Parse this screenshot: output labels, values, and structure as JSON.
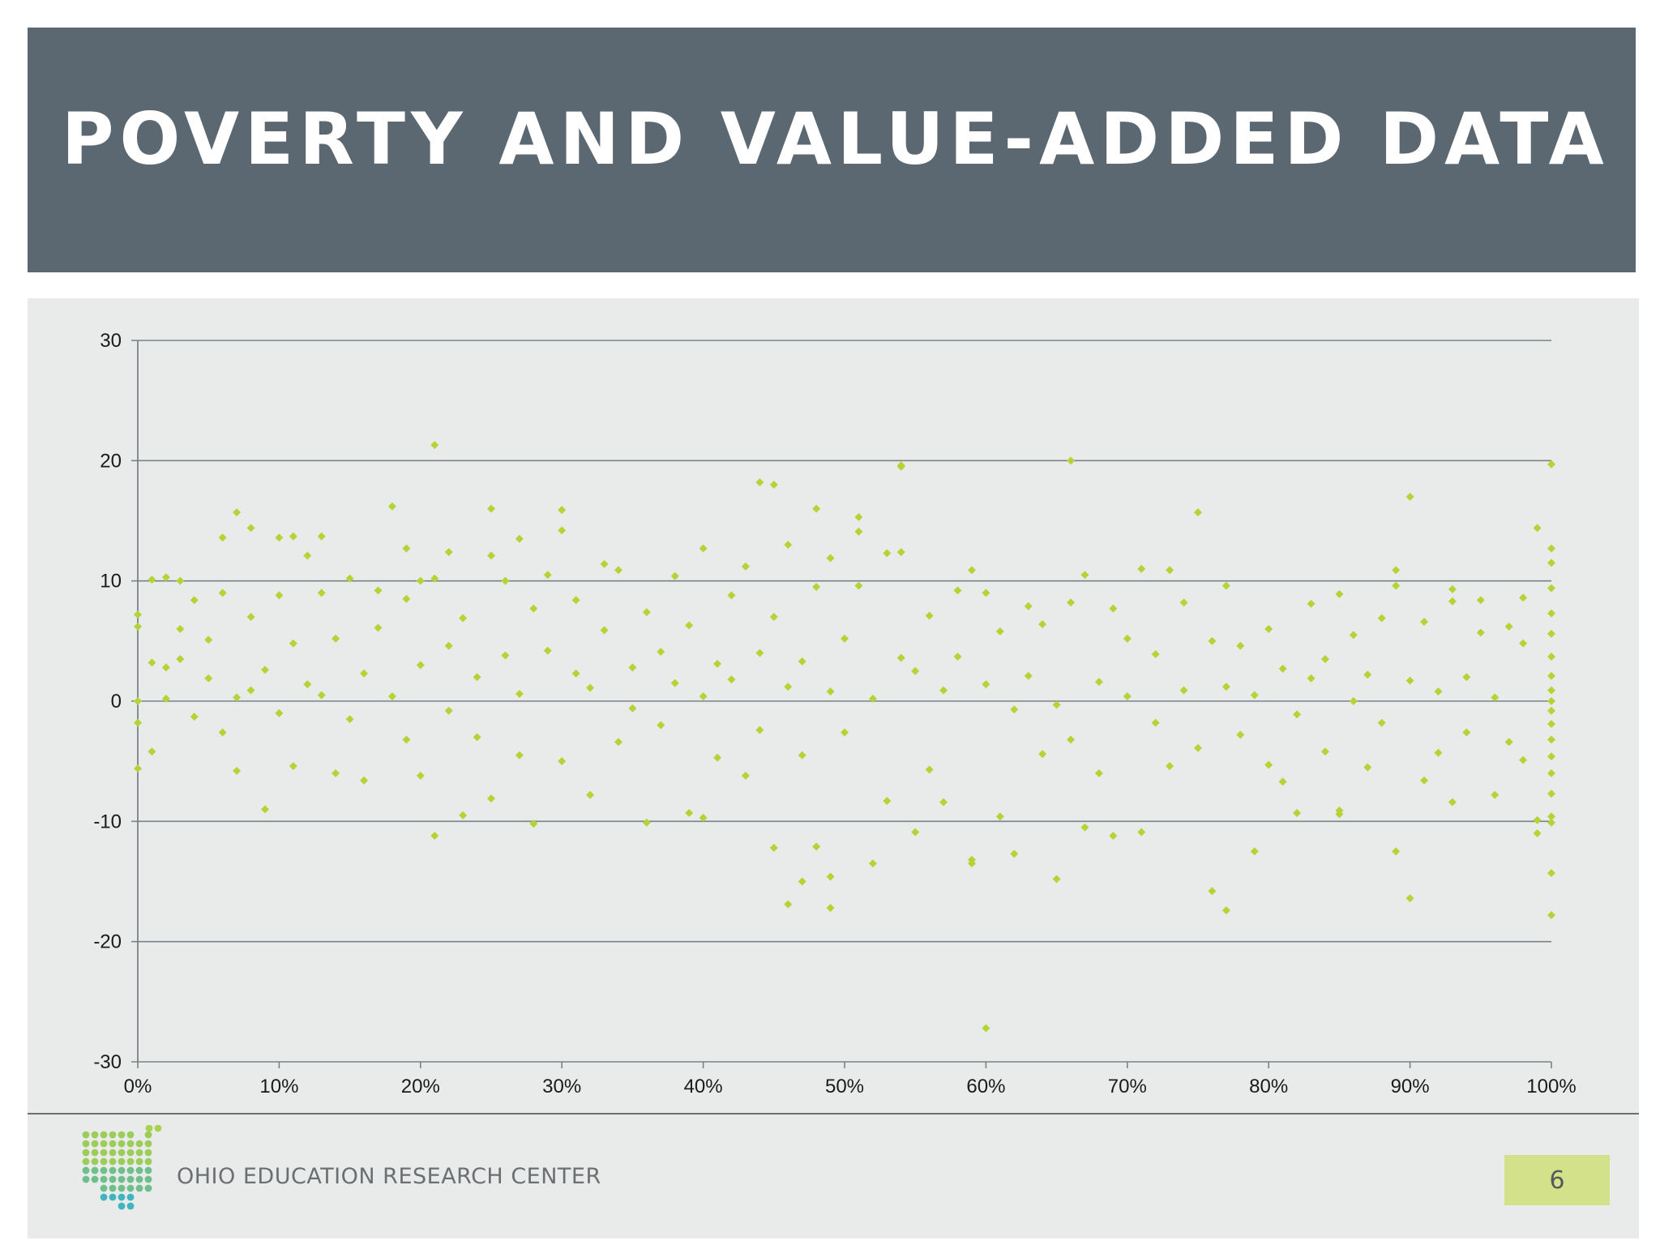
{
  "slide": {
    "title": "POVERTY AND VALUE-ADDED DATA",
    "org_name": "OHIO EDUCATION RESEARCH CENTER",
    "page_number": "6",
    "colors": {
      "banner": "#5b6771",
      "panel": "#e9ebeb",
      "marker": "#b5d334",
      "page_badge": "#d3e28a"
    },
    "logo_icon": "ohio-dot-map-icon"
  },
  "chart_data": {
    "type": "scatter",
    "title": "",
    "xlabel": "",
    "ylabel": "",
    "xlim": [
      0,
      1
    ],
    "ylim": [
      -30,
      30
    ],
    "x_ticks": [
      0,
      0.1,
      0.2,
      0.3,
      0.4,
      0.5,
      0.6,
      0.7,
      0.8,
      0.9,
      1.0
    ],
    "x_tick_labels": [
      "0%",
      "10%",
      "20%",
      "30%",
      "40%",
      "50%",
      "60%",
      "70%",
      "80%",
      "90%",
      "100%"
    ],
    "y_ticks": [
      30,
      20,
      10,
      0,
      -10,
      -20,
      -30
    ],
    "y_tick_labels": [
      "30",
      "20",
      "10",
      "0",
      "-10",
      "-20",
      "-30"
    ],
    "gridlines": "horizontal",
    "legend": "none",
    "marker": "diamond",
    "series": [
      {
        "points": [
          [
            0.0,
            7.2
          ],
          [
            0.0,
            6.2
          ],
          [
            0.0,
            -5.6
          ],
          [
            0.0,
            -1.8
          ],
          [
            0.0,
            0.0
          ],
          [
            0.01,
            3.2
          ],
          [
            0.01,
            -4.2
          ],
          [
            0.01,
            10.1
          ],
          [
            0.02,
            10.3
          ],
          [
            0.02,
            2.8
          ],
          [
            0.02,
            0.2
          ],
          [
            0.03,
            6.0
          ],
          [
            0.03,
            3.5
          ],
          [
            0.03,
            10.0
          ],
          [
            0.04,
            8.4
          ],
          [
            0.04,
            -1.3
          ],
          [
            0.05,
            5.1
          ],
          [
            0.05,
            1.9
          ],
          [
            0.06,
            13.6
          ],
          [
            0.06,
            9.0
          ],
          [
            0.06,
            -2.6
          ],
          [
            0.07,
            0.3
          ],
          [
            0.07,
            -5.8
          ],
          [
            0.07,
            15.7
          ],
          [
            0.08,
            14.4
          ],
          [
            0.08,
            7.0
          ],
          [
            0.08,
            0.9
          ],
          [
            0.09,
            -9.0
          ],
          [
            0.09,
            2.6
          ],
          [
            0.1,
            13.6
          ],
          [
            0.1,
            8.8
          ],
          [
            0.1,
            -1.0
          ],
          [
            0.11,
            -5.4
          ],
          [
            0.11,
            4.8
          ],
          [
            0.11,
            13.7
          ],
          [
            0.12,
            1.4
          ],
          [
            0.12,
            12.1
          ],
          [
            0.13,
            13.7
          ],
          [
            0.13,
            9.0
          ],
          [
            0.13,
            0.5
          ],
          [
            0.14,
            -6.0
          ],
          [
            0.14,
            5.2
          ],
          [
            0.15,
            10.2
          ],
          [
            0.15,
            -1.5
          ],
          [
            0.16,
            -6.6
          ],
          [
            0.16,
            2.3
          ],
          [
            0.17,
            9.2
          ],
          [
            0.17,
            6.1
          ],
          [
            0.18,
            16.2
          ],
          [
            0.18,
            0.4
          ],
          [
            0.19,
            12.7
          ],
          [
            0.19,
            -3.2
          ],
          [
            0.19,
            8.5
          ],
          [
            0.2,
            10.0
          ],
          [
            0.2,
            -6.2
          ],
          [
            0.2,
            3.0
          ],
          [
            0.21,
            -11.2
          ],
          [
            0.21,
            21.3
          ],
          [
            0.21,
            10.2
          ],
          [
            0.22,
            12.4
          ],
          [
            0.22,
            -0.8
          ],
          [
            0.22,
            4.6
          ],
          [
            0.23,
            -9.5
          ],
          [
            0.23,
            6.9
          ],
          [
            0.24,
            -3.0
          ],
          [
            0.24,
            2.0
          ],
          [
            0.25,
            16.0
          ],
          [
            0.25,
            12.1
          ],
          [
            0.25,
            -8.1
          ],
          [
            0.26,
            10.0
          ],
          [
            0.26,
            3.8
          ],
          [
            0.27,
            13.5
          ],
          [
            0.27,
            -4.5
          ],
          [
            0.27,
            0.6
          ],
          [
            0.28,
            7.7
          ],
          [
            0.28,
            -10.2
          ],
          [
            0.29,
            10.5
          ],
          [
            0.29,
            4.2
          ],
          [
            0.3,
            14.2
          ],
          [
            0.3,
            15.9
          ],
          [
            0.3,
            -5.0
          ],
          [
            0.31,
            2.3
          ],
          [
            0.31,
            8.4
          ],
          [
            0.32,
            -7.8
          ],
          [
            0.32,
            1.1
          ],
          [
            0.33,
            11.4
          ],
          [
            0.33,
            5.9
          ],
          [
            0.34,
            -3.4
          ],
          [
            0.34,
            10.9
          ],
          [
            0.35,
            2.8
          ],
          [
            0.35,
            -0.6
          ],
          [
            0.36,
            7.4
          ],
          [
            0.36,
            -10.1
          ],
          [
            0.37,
            4.1
          ],
          [
            0.37,
            -2.0
          ],
          [
            0.38,
            10.4
          ],
          [
            0.38,
            1.5
          ],
          [
            0.39,
            -9.3
          ],
          [
            0.39,
            6.3
          ],
          [
            0.4,
            -9.7
          ],
          [
            0.4,
            12.7
          ],
          [
            0.4,
            0.4
          ],
          [
            0.41,
            3.1
          ],
          [
            0.41,
            -4.7
          ],
          [
            0.42,
            8.8
          ],
          [
            0.42,
            1.8
          ],
          [
            0.43,
            11.2
          ],
          [
            0.43,
            -6.2
          ],
          [
            0.44,
            18.2
          ],
          [
            0.44,
            4.0
          ],
          [
            0.44,
            -2.4
          ],
          [
            0.45,
            7.0
          ],
          [
            0.45,
            18.0
          ],
          [
            0.45,
            -12.2
          ],
          [
            0.46,
            1.2
          ],
          [
            0.46,
            -16.9
          ],
          [
            0.46,
            13.0
          ],
          [
            0.47,
            -15.0
          ],
          [
            0.47,
            3.3
          ],
          [
            0.47,
            -4.5
          ],
          [
            0.48,
            16.0
          ],
          [
            0.48,
            9.5
          ],
          [
            0.48,
            -12.1
          ],
          [
            0.49,
            0.8
          ],
          [
            0.49,
            -14.6
          ],
          [
            0.49,
            -17.2
          ],
          [
            0.49,
            11.9
          ],
          [
            0.5,
            5.2
          ],
          [
            0.5,
            -2.6
          ],
          [
            0.51,
            15.3
          ],
          [
            0.51,
            14.1
          ],
          [
            0.51,
            9.6
          ],
          [
            0.52,
            -13.5
          ],
          [
            0.52,
            0.2
          ],
          [
            0.53,
            12.3
          ],
          [
            0.53,
            -8.3
          ],
          [
            0.54,
            3.6
          ],
          [
            0.54,
            19.6
          ],
          [
            0.54,
            19.5
          ],
          [
            0.54,
            12.4
          ],
          [
            0.55,
            -10.9
          ],
          [
            0.55,
            2.5
          ],
          [
            0.56,
            -5.7
          ],
          [
            0.56,
            7.1
          ],
          [
            0.57,
            0.9
          ],
          [
            0.57,
            -8.4
          ],
          [
            0.58,
            9.2
          ],
          [
            0.58,
            3.7
          ],
          [
            0.59,
            10.9
          ],
          [
            0.59,
            -13.5
          ],
          [
            0.59,
            -13.2
          ],
          [
            0.6,
            1.4
          ],
          [
            0.6,
            9.0
          ],
          [
            0.6,
            -27.2
          ],
          [
            0.61,
            -9.6
          ],
          [
            0.61,
            5.8
          ],
          [
            0.62,
            -0.7
          ],
          [
            0.62,
            -12.7
          ],
          [
            0.63,
            7.9
          ],
          [
            0.63,
            2.1
          ],
          [
            0.64,
            -4.4
          ],
          [
            0.64,
            6.4
          ],
          [
            0.65,
            -0.3
          ],
          [
            0.65,
            -14.8
          ],
          [
            0.66,
            20.0
          ],
          [
            0.66,
            8.2
          ],
          [
            0.66,
            -3.2
          ],
          [
            0.67,
            10.5
          ],
          [
            0.67,
            -10.5
          ],
          [
            0.68,
            1.6
          ],
          [
            0.68,
            -6.0
          ],
          [
            0.69,
            7.7
          ],
          [
            0.69,
            -11.2
          ],
          [
            0.7,
            0.4
          ],
          [
            0.7,
            5.2
          ],
          [
            0.71,
            -10.9
          ],
          [
            0.71,
            11.0
          ],
          [
            0.72,
            -1.8
          ],
          [
            0.72,
            3.9
          ],
          [
            0.73,
            10.9
          ],
          [
            0.73,
            -5.4
          ],
          [
            0.74,
            8.2
          ],
          [
            0.74,
            0.9
          ],
          [
            0.75,
            -3.9
          ],
          [
            0.75,
            15.7
          ],
          [
            0.76,
            5.0
          ],
          [
            0.76,
            -15.8
          ],
          [
            0.77,
            -17.4
          ],
          [
            0.77,
            9.6
          ],
          [
            0.77,
            1.2
          ],
          [
            0.78,
            -2.8
          ],
          [
            0.78,
            4.6
          ],
          [
            0.79,
            -12.5
          ],
          [
            0.79,
            0.5
          ],
          [
            0.8,
            6.0
          ],
          [
            0.8,
            -5.3
          ],
          [
            0.81,
            2.7
          ],
          [
            0.81,
            -6.7
          ],
          [
            0.82,
            -1.1
          ],
          [
            0.82,
            -9.3
          ],
          [
            0.83,
            8.1
          ],
          [
            0.83,
            1.9
          ],
          [
            0.84,
            -4.2
          ],
          [
            0.84,
            3.5
          ],
          [
            0.85,
            -9.1
          ],
          [
            0.85,
            -9.4
          ],
          [
            0.85,
            8.9
          ],
          [
            0.86,
            0.0
          ],
          [
            0.86,
            5.5
          ],
          [
            0.87,
            -5.5
          ],
          [
            0.87,
            2.2
          ],
          [
            0.88,
            6.9
          ],
          [
            0.88,
            -1.8
          ],
          [
            0.89,
            -12.5
          ],
          [
            0.89,
            10.9
          ],
          [
            0.89,
            9.6
          ],
          [
            0.9,
            17.0
          ],
          [
            0.9,
            -16.4
          ],
          [
            0.9,
            1.7
          ],
          [
            0.91,
            -6.6
          ],
          [
            0.91,
            6.6
          ],
          [
            0.92,
            0.8
          ],
          [
            0.92,
            -4.3
          ],
          [
            0.93,
            8.3
          ],
          [
            0.93,
            -8.4
          ],
          [
            0.93,
            9.3
          ],
          [
            0.94,
            2.0
          ],
          [
            0.94,
            -2.6
          ],
          [
            0.95,
            5.7
          ],
          [
            0.95,
            8.4
          ],
          [
            0.96,
            -7.8
          ],
          [
            0.96,
            0.3
          ],
          [
            0.97,
            6.2
          ],
          [
            0.97,
            -3.4
          ],
          [
            0.98,
            4.8
          ],
          [
            0.98,
            8.6
          ],
          [
            0.98,
            -4.9
          ],
          [
            0.99,
            14.4
          ],
          [
            0.99,
            -11.0
          ],
          [
            0.99,
            -9.9
          ],
          [
            1.0,
            19.7
          ],
          [
            1.0,
            12.7
          ],
          [
            1.0,
            11.5
          ],
          [
            1.0,
            9.4
          ],
          [
            1.0,
            7.3
          ],
          [
            1.0,
            5.6
          ],
          [
            1.0,
            3.7
          ],
          [
            1.0,
            2.1
          ],
          [
            1.0,
            0.9
          ],
          [
            1.0,
            0.0
          ],
          [
            1.0,
            -0.8
          ],
          [
            1.0,
            -1.9
          ],
          [
            1.0,
            -3.2
          ],
          [
            1.0,
            -4.6
          ],
          [
            1.0,
            -6.0
          ],
          [
            1.0,
            -7.7
          ],
          [
            1.0,
            -9.6
          ],
          [
            1.0,
            -10.1
          ],
          [
            1.0,
            -14.3
          ],
          [
            1.0,
            -17.8
          ]
        ]
      }
    ]
  }
}
